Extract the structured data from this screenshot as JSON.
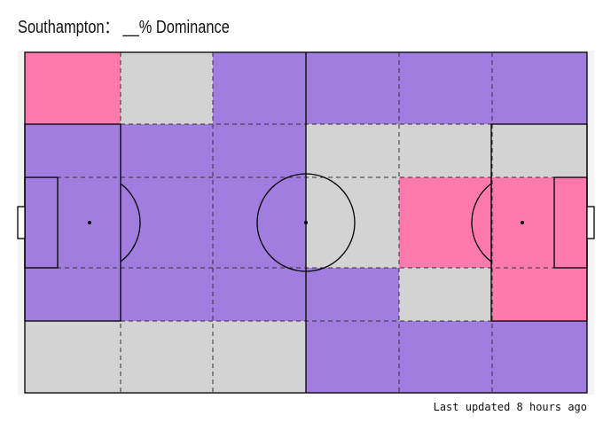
{
  "title": "Southampton：  __% Dominance",
  "footer": "Last updated 8 hours ago",
  "zones": [
    [
      "#ff7aac",
      "#d3d3d3",
      "#a07ddf",
      "#a07ddf",
      "#a07ddf",
      "#a07ddf"
    ],
    [
      "#a07ddf",
      "#a07ddf",
      "#a07ddf",
      "#d3d3d3",
      "#d3d3d3",
      "#d3d3d3"
    ],
    [
      "#a07ddf",
      "#a07ddf",
      "#a07ddf",
      "#d3d3d3",
      "#ff7aac",
      "#ff7aac"
    ],
    [
      "#a07ddf",
      "#a07ddf",
      "#a07ddf",
      "#a07ddf",
      "#d3d3d3",
      "#ff7aac"
    ],
    [
      "#d3d3d3",
      "#d3d3d3",
      "#d3d3d3",
      "#a07ddf",
      "#a07ddf",
      "#a07ddf"
    ]
  ]
}
